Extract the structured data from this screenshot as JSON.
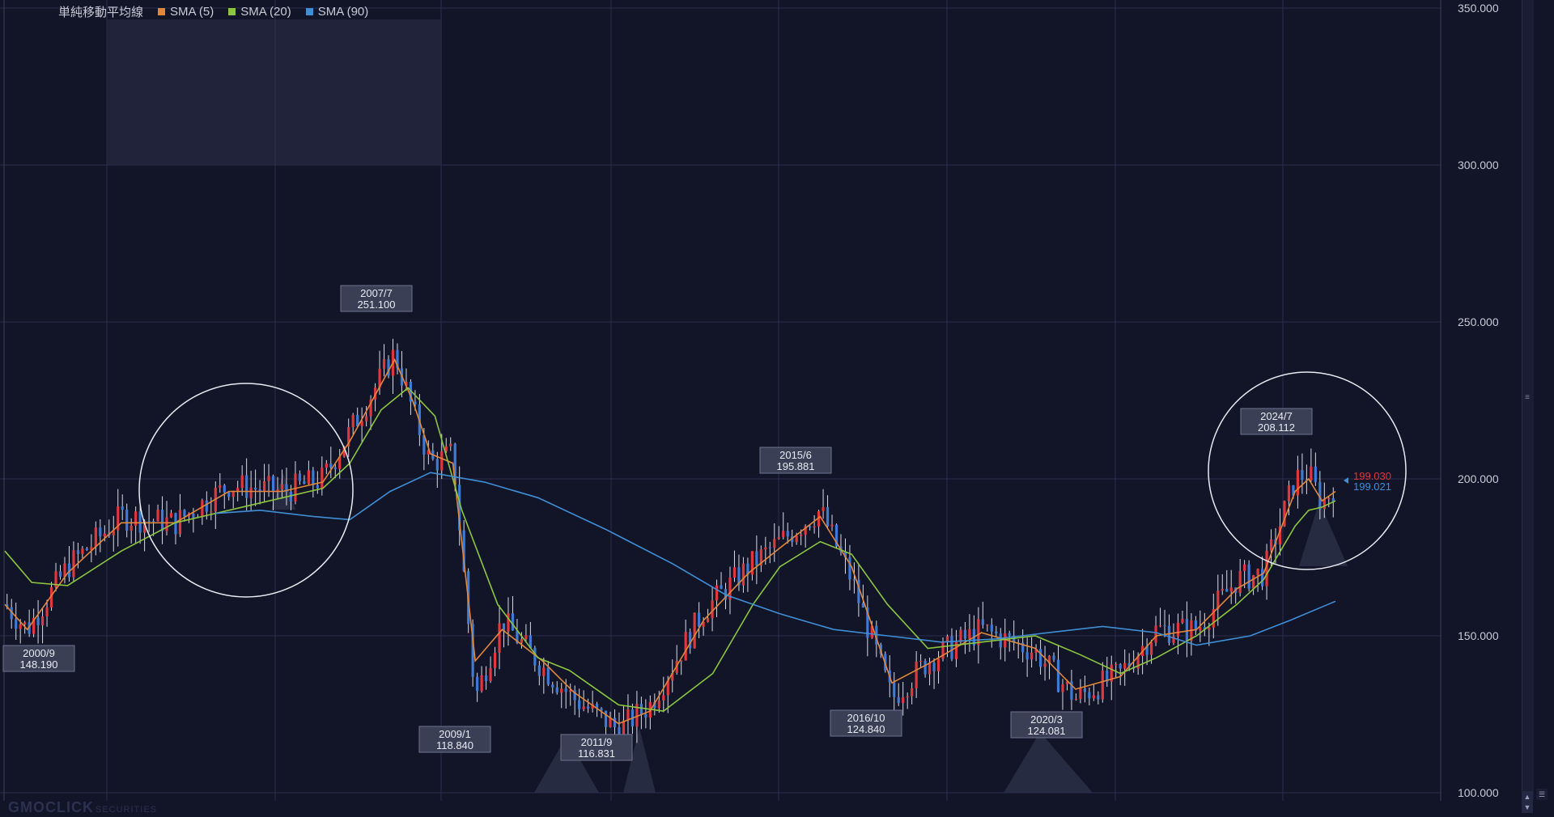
{
  "legend": {
    "title": "単純移動平均線",
    "items": [
      {
        "label": "SMA (5)",
        "color": "#e0873a"
      },
      {
        "label": "SMA (20)",
        "color": "#8cc63e"
      },
      {
        "label": "SMA (90)",
        "color": "#3e8fd6"
      }
    ]
  },
  "watermark": {
    "brand": "GMOCLICK",
    "sub": "SECURITIES"
  },
  "price_markers": {
    "upper": {
      "value": "199.030",
      "color": "#e0383e"
    },
    "lower": {
      "value": "199.021",
      "color": "#3e8fd6"
    }
  },
  "colors": {
    "up": "#e0383e",
    "down": "#3e7bd6",
    "grid": "#2a2e4a",
    "background": "#121428"
  },
  "chart_data": {
    "type": "candlestick",
    "ylim": [
      100,
      350
    ],
    "y_ticks": [
      "100.000",
      "150.000",
      "200.000",
      "250.000",
      "300.000",
      "350.000"
    ],
    "x_range": [
      "2000/4",
      "2025/1"
    ],
    "grid": true,
    "legend_position": "top-left",
    "annotations": [
      {
        "date": "2000/9",
        "value": "148.190"
      },
      {
        "date": "2007/7",
        "value": "251.100"
      },
      {
        "date": "2009/1",
        "value": "118.840"
      },
      {
        "date": "2011/9",
        "value": "116.831"
      },
      {
        "date": "2015/6",
        "value": "195.881"
      },
      {
        "date": "2016/10",
        "value": "124.840"
      },
      {
        "date": "2020/3",
        "value": "124.081"
      },
      {
        "date": "2024/7",
        "value": "208.112"
      }
    ],
    "price_path": [
      {
        "x": "2000/4",
        "y": 160
      },
      {
        "x": "2000/9",
        "y": 152
      },
      {
        "x": "2001/6",
        "y": 172
      },
      {
        "x": "2002/6",
        "y": 188
      },
      {
        "x": "2003/6",
        "y": 186
      },
      {
        "x": "2004/6",
        "y": 198
      },
      {
        "x": "2005/6",
        "y": 196
      },
      {
        "x": "2006/3",
        "y": 200
      },
      {
        "x": "2006/9",
        "y": 215
      },
      {
        "x": "2007/7",
        "y": 240
      },
      {
        "x": "2007/11",
        "y": 222
      },
      {
        "x": "2008/3",
        "y": 205
      },
      {
        "x": "2008/8",
        "y": 208
      },
      {
        "x": "2009/1",
        "y": 130
      },
      {
        "x": "2009/7",
        "y": 155
      },
      {
        "x": "2010/4",
        "y": 140
      },
      {
        "x": "2010/11",
        "y": 130
      },
      {
        "x": "2011/9",
        "y": 120
      },
      {
        "x": "2012/4",
        "y": 128
      },
      {
        "x": "2013/4",
        "y": 158
      },
      {
        "x": "2014/2",
        "y": 172
      },
      {
        "x": "2014/9",
        "y": 180
      },
      {
        "x": "2015/6",
        "y": 190
      },
      {
        "x": "2016/1",
        "y": 168
      },
      {
        "x": "2016/10",
        "y": 130
      },
      {
        "x": "2017/6",
        "y": 142
      },
      {
        "x": "2018/6",
        "y": 152
      },
      {
        "x": "2019/6",
        "y": 145
      },
      {
        "x": "2020/3",
        "y": 130
      },
      {
        "x": "2021/1",
        "y": 138
      },
      {
        "x": "2021/9",
        "y": 152
      },
      {
        "x": "2022/6",
        "y": 152
      },
      {
        "x": "2023/3",
        "y": 168
      },
      {
        "x": "2023/9",
        "y": 170
      },
      {
        "x": "2024/4",
        "y": 200
      },
      {
        "x": "2024/7",
        "y": 202
      },
      {
        "x": "2024/10",
        "y": 192
      },
      {
        "x": "2025/1",
        "y": 198
      }
    ],
    "series": [
      {
        "name": "SMA (5)",
        "color": "#e0873a",
        "points": [
          [
            "2000/4",
            160
          ],
          [
            "2000/9",
            152
          ],
          [
            "2001/6",
            170
          ],
          [
            "2002/6",
            186
          ],
          [
            "2003/6",
            186
          ],
          [
            "2004/6",
            196
          ],
          [
            "2005/6",
            196
          ],
          [
            "2006/3",
            199
          ],
          [
            "2006/9",
            212
          ],
          [
            "2007/7",
            238
          ],
          [
            "2007/11",
            225
          ],
          [
            "2008/3",
            208
          ],
          [
            "2008/8",
            205
          ],
          [
            "2009/1",
            142
          ],
          [
            "2009/7",
            152
          ],
          [
            "2010/4",
            142
          ],
          [
            "2010/11",
            132
          ],
          [
            "2011/9",
            122
          ],
          [
            "2012/4",
            126
          ],
          [
            "2013/4",
            155
          ],
          [
            "2014/2",
            170
          ],
          [
            "2014/9",
            178
          ],
          [
            "2015/6",
            188
          ],
          [
            "2016/1",
            172
          ],
          [
            "2016/10",
            135
          ],
          [
            "2017/6",
            141
          ],
          [
            "2018/6",
            151
          ],
          [
            "2019/6",
            146
          ],
          [
            "2020/3",
            133
          ],
          [
            "2021/1",
            137
          ],
          [
            "2021/9",
            150
          ],
          [
            "2022/6",
            152
          ],
          [
            "2023/3",
            165
          ],
          [
            "2023/9",
            170
          ],
          [
            "2024/4",
            196
          ],
          [
            "2024/7",
            200
          ],
          [
            "2024/10",
            193
          ],
          [
            "2025/1",
            196
          ]
        ]
      },
      {
        "name": "SMA (20)",
        "color": "#8cc63e",
        "points": [
          [
            "2000/4",
            177
          ],
          [
            "2000/10",
            167
          ],
          [
            "2001/6",
            166
          ],
          [
            "2002/6",
            177
          ],
          [
            "2003/6",
            186
          ],
          [
            "2004/6",
            190
          ],
          [
            "2005/6",
            194
          ],
          [
            "2006/3",
            197
          ],
          [
            "2006/9",
            205
          ],
          [
            "2007/4",
            222
          ],
          [
            "2007/10",
            229
          ],
          [
            "2008/4",
            220
          ],
          [
            "2008/10",
            190
          ],
          [
            "2009/6",
            160
          ],
          [
            "2010/3",
            143
          ],
          [
            "2010/10",
            139
          ],
          [
            "2011/9",
            128
          ],
          [
            "2012/7",
            126
          ],
          [
            "2013/6",
            138
          ],
          [
            "2014/3",
            160
          ],
          [
            "2014/9",
            172
          ],
          [
            "2015/6",
            180
          ],
          [
            "2016/1",
            176
          ],
          [
            "2016/9",
            160
          ],
          [
            "2017/6",
            146
          ],
          [
            "2018/6",
            148
          ],
          [
            "2019/6",
            150
          ],
          [
            "2020/4",
            144
          ],
          [
            "2021/1",
            138
          ],
          [
            "2021/9",
            143
          ],
          [
            "2022/6",
            150
          ],
          [
            "2023/3",
            160
          ],
          [
            "2023/9",
            168
          ],
          [
            "2024/4",
            185
          ],
          [
            "2024/7",
            190
          ],
          [
            "2024/10",
            191
          ],
          [
            "2025/1",
            193
          ]
        ]
      },
      {
        "name": "SMA (90)",
        "color": "#3e8fd6",
        "points": [
          [
            "2004/3",
            189
          ],
          [
            "2005/1",
            190
          ],
          [
            "2006/1",
            188
          ],
          [
            "2006/9",
            187
          ],
          [
            "2007/6",
            196
          ],
          [
            "2008/3",
            202
          ],
          [
            "2009/3",
            199
          ],
          [
            "2010/3",
            194
          ],
          [
            "2011/6",
            184
          ],
          [
            "2012/9",
            173
          ],
          [
            "2013/9",
            163
          ],
          [
            "2014/9",
            157
          ],
          [
            "2015/9",
            152
          ],
          [
            "2016/9",
            150
          ],
          [
            "2017/9",
            148
          ],
          [
            "2018/9",
            149
          ],
          [
            "2019/9",
            151
          ],
          [
            "2020/9",
            153
          ],
          [
            "2021/9",
            151
          ],
          [
            "2022/6",
            147
          ],
          [
            "2023/6",
            150
          ],
          [
            "2024/3",
            155
          ],
          [
            "2025/1",
            161
          ]
        ]
      }
    ]
  }
}
